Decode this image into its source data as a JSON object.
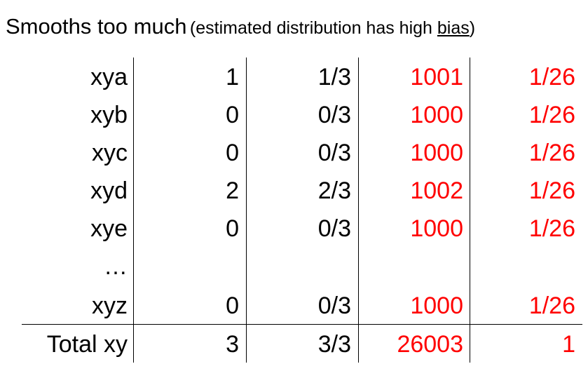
{
  "title": {
    "main": "Smooths too much",
    "paren_before": "(estimated distribution has high ",
    "paren_underlined": "bias",
    "paren_after": ")"
  },
  "colors": {
    "highlight": "#ff0000",
    "text": "#000000"
  },
  "rows": [
    {
      "label": "xya",
      "count": "1",
      "fraction": "1/3",
      "smoothed_count": "1001",
      "smoothed_prob": "1/26"
    },
    {
      "label": "xyb",
      "count": "0",
      "fraction": "0/3",
      "smoothed_count": "1000",
      "smoothed_prob": "1/26"
    },
    {
      "label": "xyc",
      "count": "0",
      "fraction": "0/3",
      "smoothed_count": "1000",
      "smoothed_prob": "1/26"
    },
    {
      "label": "xyd",
      "count": "2",
      "fraction": "2/3",
      "smoothed_count": "1002",
      "smoothed_prob": "1/26"
    },
    {
      "label": "xye",
      "count": "0",
      "fraction": "0/3",
      "smoothed_count": "1000",
      "smoothed_prob": "1/26"
    },
    {
      "label": "…",
      "count": "",
      "fraction": "",
      "smoothed_count": "",
      "smoothed_prob": ""
    },
    {
      "label": "xyz",
      "count": "0",
      "fraction": "0/3",
      "smoothed_count": "1000",
      "smoothed_prob": "1/26"
    }
  ],
  "total": {
    "label": "Total xy",
    "count": "3",
    "fraction": "3/3",
    "smoothed_count": "26003",
    "smoothed_prob": "1"
  }
}
